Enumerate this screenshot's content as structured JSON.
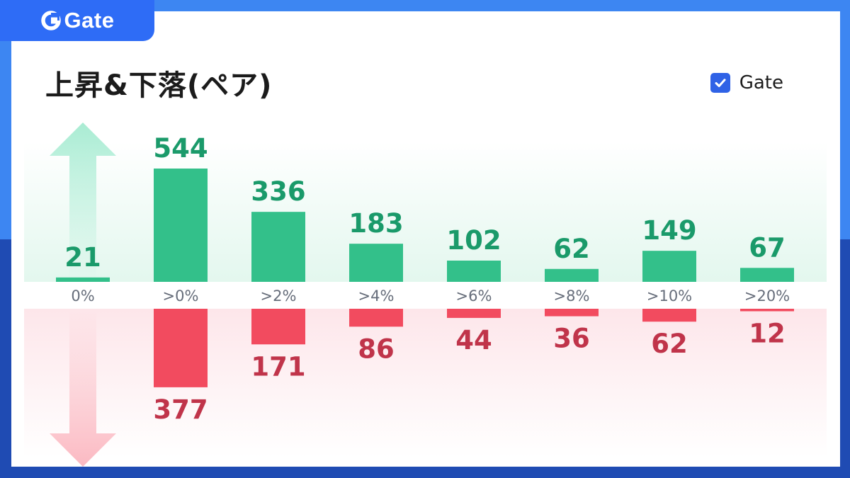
{
  "brand": {
    "name": "Gate"
  },
  "colors": {
    "up": "#33c08a",
    "up_text": "#1a9a6a",
    "down": "#f24b5f",
    "down_text": "#c0344a",
    "axis_text": "#666d7a",
    "frame_top": "#3d86f2",
    "frame_bottom": "#1f4bb3",
    "checkbox": "#2f62e6"
  },
  "chart_data": {
    "type": "bar",
    "title": "上昇&下落(ペア)",
    "categories": [
      "0%",
      ">0%",
      ">2%",
      ">4%",
      ">6%",
      ">8%",
      ">10%",
      ">20%"
    ],
    "series": [
      {
        "name": "Gate",
        "direction": "up",
        "values": [
          21,
          544,
          336,
          183,
          102,
          62,
          149,
          67
        ]
      },
      {
        "direction": "down",
        "values": [
          null,
          377,
          171,
          86,
          44,
          36,
          62,
          12
        ]
      }
    ],
    "legend": {
      "position": "top-right",
      "checked": true
    }
  }
}
